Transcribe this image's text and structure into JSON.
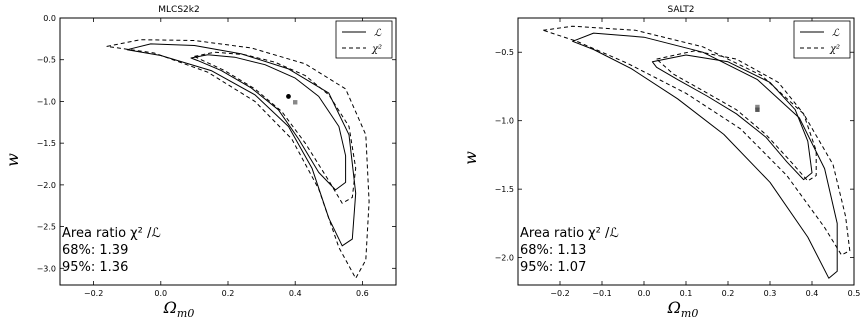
{
  "chart_data": [
    {
      "type": "line",
      "title": "MLCS2k2",
      "xlabel": "Ω",
      "xlabel_sub": "m0",
      "ylabel": "w",
      "xlim": [
        -0.3,
        0.7
      ],
      "ylim": [
        -3.2,
        0.0
      ],
      "xticks": [
        -0.2,
        0.0,
        0.2,
        0.4,
        0.6
      ],
      "xtick_labels": [
        "−0.2",
        "0.0",
        "0.2",
        "0.4",
        "0.6"
      ],
      "yticks": [
        0.0,
        -0.5,
        -1.0,
        -1.5,
        -2.0,
        -2.5,
        -3.0
      ],
      "ytick_labels": [
        "0.0",
        "−0.5",
        "−1.0",
        "−1.5",
        "−2.0",
        "−2.5",
        "−3.0"
      ],
      "legend": {
        "position": "top-right",
        "entries": [
          {
            "label": "ℒ",
            "style": "solid"
          },
          {
            "label": "χ²",
            "style": "dashed"
          }
        ]
      },
      "annotation": [
        "Area ratio χ² /ℒ",
        "68%: 1.39",
        "95%: 1.36"
      ],
      "series": [
        {
          "name": "ℒ",
          "style": "solid",
          "contour": "68%",
          "x": [
            0.09,
            0.14,
            0.22,
            0.31,
            0.4,
            0.47,
            0.53,
            0.55,
            0.55,
            0.52,
            0.47,
            0.41,
            0.35,
            0.27,
            0.18,
            0.11,
            0.09
          ],
          "y": [
            -0.48,
            -0.44,
            -0.47,
            -0.56,
            -0.72,
            -0.94,
            -1.3,
            -1.65,
            -1.97,
            -2.06,
            -1.85,
            -1.45,
            -1.1,
            -0.84,
            -0.63,
            -0.51,
            -0.48
          ]
        },
        {
          "name": "ℒ",
          "style": "solid",
          "contour": "95%",
          "x": [
            -0.1,
            -0.03,
            0.1,
            0.24,
            0.38,
            0.5,
            0.56,
            0.58,
            0.57,
            0.54,
            0.5,
            0.45,
            0.38,
            0.28,
            0.15,
            0.0,
            -0.1
          ],
          "y": [
            -0.38,
            -0.31,
            -0.33,
            -0.43,
            -0.61,
            -0.9,
            -1.4,
            -2.1,
            -2.65,
            -2.73,
            -2.4,
            -1.8,
            -1.3,
            -0.92,
            -0.63,
            -0.45,
            -0.38
          ]
        },
        {
          "name": "χ²",
          "style": "dashed",
          "contour": "68%",
          "x": [
            0.1,
            0.16,
            0.25,
            0.34,
            0.43,
            0.5,
            0.56,
            0.58,
            0.57,
            0.54,
            0.5,
            0.43,
            0.36,
            0.28,
            0.19,
            0.12,
            0.1
          ],
          "y": [
            -0.46,
            -0.41,
            -0.44,
            -0.53,
            -0.69,
            -0.92,
            -1.3,
            -1.8,
            -2.15,
            -2.22,
            -1.95,
            -1.5,
            -1.12,
            -0.85,
            -0.63,
            -0.5,
            -0.46
          ]
        },
        {
          "name": "χ²",
          "style": "dashed",
          "contour": "95%",
          "x": [
            -0.16,
            -0.06,
            0.1,
            0.27,
            0.43,
            0.55,
            0.61,
            0.62,
            0.61,
            0.58,
            0.53,
            0.47,
            0.39,
            0.28,
            0.14,
            -0.02,
            -0.16
          ],
          "y": [
            -0.34,
            -0.26,
            -0.27,
            -0.36,
            -0.55,
            -0.85,
            -1.4,
            -2.2,
            -2.9,
            -3.12,
            -2.75,
            -2.05,
            -1.45,
            -1.0,
            -0.65,
            -0.42,
            -0.34
          ]
        }
      ],
      "points": [
        {
          "x": 0.38,
          "y": -0.94,
          "color": "#000000"
        },
        {
          "x": 0.4,
          "y": -1.01,
          "color": "#888888"
        }
      ]
    },
    {
      "type": "line",
      "title": "SALT2",
      "xlabel": "Ω",
      "xlabel_sub": "m0",
      "ylabel": "w",
      "xlim": [
        -0.3,
        0.5
      ],
      "ylim": [
        -2.2,
        -0.25
      ],
      "xticks": [
        -0.2,
        -0.1,
        0.0,
        0.1,
        0.2,
        0.3,
        0.4,
        0.5
      ],
      "xtick_labels": [
        "−0.2",
        "−0.1",
        "0.0",
        "0.1",
        "0.2",
        "0.3",
        "0.4",
        "0.5"
      ],
      "yticks": [
        -0.5,
        -1.0,
        -1.5,
        -2.0
      ],
      "ytick_labels": [
        "−0.5",
        "−1.0",
        "−1.5",
        "−2.0"
      ],
      "legend": {
        "position": "top-right",
        "entries": [
          {
            "label": "ℒ",
            "style": "solid"
          },
          {
            "label": "χ²",
            "style": "dashed"
          }
        ]
      },
      "annotation": [
        "Area ratio χ² /ℒ",
        "68%: 1.13",
        "95%: 1.07"
      ],
      "series": [
        {
          "name": "ℒ",
          "style": "solid",
          "contour": "68%",
          "x": [
            0.02,
            0.1,
            0.2,
            0.3,
            0.36,
            0.39,
            0.4,
            0.38,
            0.34,
            0.29,
            0.22,
            0.15,
            0.08,
            0.03,
            0.02
          ],
          "y": [
            -0.57,
            -0.52,
            -0.57,
            -0.72,
            -0.92,
            -1.15,
            -1.38,
            -1.43,
            -1.3,
            -1.12,
            -0.95,
            -0.82,
            -0.7,
            -0.61,
            -0.57
          ]
        },
        {
          "name": "ℒ",
          "style": "solid",
          "contour": "95%",
          "x": [
            -0.17,
            -0.12,
            0.0,
            0.14,
            0.27,
            0.37,
            0.43,
            0.46,
            0.46,
            0.44,
            0.39,
            0.3,
            0.19,
            0.08,
            -0.03,
            -0.12,
            -0.17
          ],
          "y": [
            -0.42,
            -0.36,
            -0.39,
            -0.5,
            -0.7,
            -0.98,
            -1.35,
            -1.75,
            -2.1,
            -2.15,
            -1.85,
            -1.45,
            -1.1,
            -0.84,
            -0.62,
            -0.48,
            -0.42
          ]
        },
        {
          "name": "χ²",
          "style": "dashed",
          "contour": "68%",
          "x": [
            0.03,
            0.12,
            0.22,
            0.32,
            0.38,
            0.41,
            0.41,
            0.39,
            0.35,
            0.29,
            0.22,
            0.14,
            0.07,
            0.03
          ],
          "y": [
            -0.55,
            -0.49,
            -0.55,
            -0.72,
            -0.95,
            -1.22,
            -1.4,
            -1.44,
            -1.3,
            -1.1,
            -0.92,
            -0.78,
            -0.66,
            -0.55
          ]
        },
        {
          "name": "χ²",
          "style": "dashed",
          "contour": "95%",
          "x": [
            -0.24,
            -0.17,
            -0.02,
            0.14,
            0.28,
            0.38,
            0.45,
            0.48,
            0.49,
            0.47,
            0.43,
            0.34,
            0.23,
            0.1,
            -0.04,
            -0.16,
            -0.24
          ],
          "y": [
            -0.34,
            -0.31,
            -0.34,
            -0.46,
            -0.67,
            -0.95,
            -1.32,
            -1.7,
            -1.95,
            -1.98,
            -1.78,
            -1.4,
            -1.06,
            -0.8,
            -0.58,
            -0.42,
            -0.34
          ]
        }
      ],
      "points": [
        {
          "x": 0.27,
          "y": -0.9,
          "color": "#888888"
        },
        {
          "x": 0.27,
          "y": -0.92,
          "color": "#555555"
        }
      ]
    }
  ]
}
